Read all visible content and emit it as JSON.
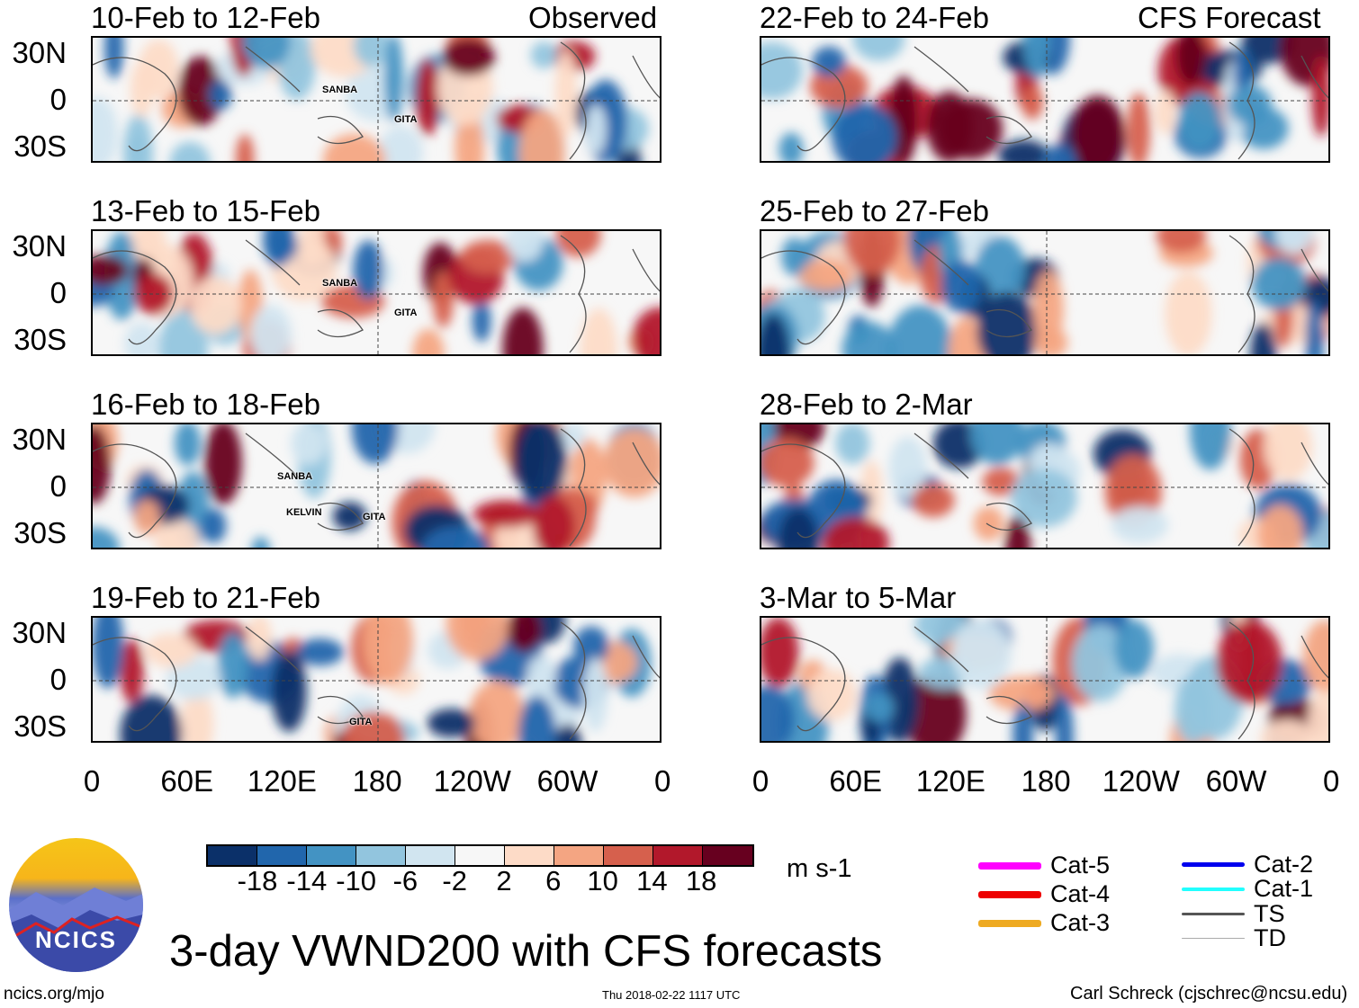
{
  "header": {
    "observed_label": "Observed",
    "forecast_label": "CFS Forecast"
  },
  "panels": {
    "observed": [
      {
        "title": "10-Feb to 12-Feb",
        "storms": [
          "SANBA",
          "GITA"
        ]
      },
      {
        "title": "13-Feb to 15-Feb",
        "storms": [
          "SANBA",
          "GITA"
        ]
      },
      {
        "title": "16-Feb to 18-Feb",
        "storms": [
          "SANBA",
          "KELVIN",
          "GITA"
        ]
      },
      {
        "title": "19-Feb to 21-Feb",
        "storms": [
          "GITA"
        ]
      }
    ],
    "forecast": [
      {
        "title": "22-Feb to 24-Feb"
      },
      {
        "title": "25-Feb to 27-Feb"
      },
      {
        "title": "28-Feb to 2-Mar"
      },
      {
        "title": "3-Mar to 5-Mar"
      }
    ]
  },
  "lat_labels": [
    "30N",
    "0",
    "30S"
  ],
  "lon_labels": [
    "0",
    "60E",
    "120E",
    "180",
    "120W",
    "60W",
    "0"
  ],
  "colorbar": {
    "colors": [
      "#0b3069",
      "#2166ac",
      "#4393c3",
      "#92c5de",
      "#d1e5f0",
      "#f7f7f7",
      "#fddbc7",
      "#f4a582",
      "#d6604d",
      "#b2182b",
      "#67001f"
    ],
    "ticks": [
      "-18",
      "-14",
      "-10",
      "-6",
      "-2",
      "2",
      "6",
      "10",
      "14",
      "18"
    ],
    "units": "m s-1"
  },
  "legend": [
    {
      "label": "Cat-5",
      "color": "#ff00ff"
    },
    {
      "label": "Cat-4",
      "color": "#ee0000"
    },
    {
      "label": "Cat-3",
      "color": "#eeaa22"
    },
    {
      "label": "Cat-2",
      "color": "#0000ee"
    },
    {
      "label": "Cat-1",
      "color": "#22ffff"
    },
    {
      "label": "TS",
      "color": "#555555"
    },
    {
      "label": "TD",
      "color": "#aaaaaa"
    }
  ],
  "footer": {
    "title": "3-day VWND200 with CFS forecasts",
    "logo_text": "NCICS",
    "site": "ncics.org/mjo",
    "timestamp": "Thu 2018-02-22 1117 UTC",
    "credit": "Carl Schreck (cjschrec@ncsu.edu)"
  }
}
